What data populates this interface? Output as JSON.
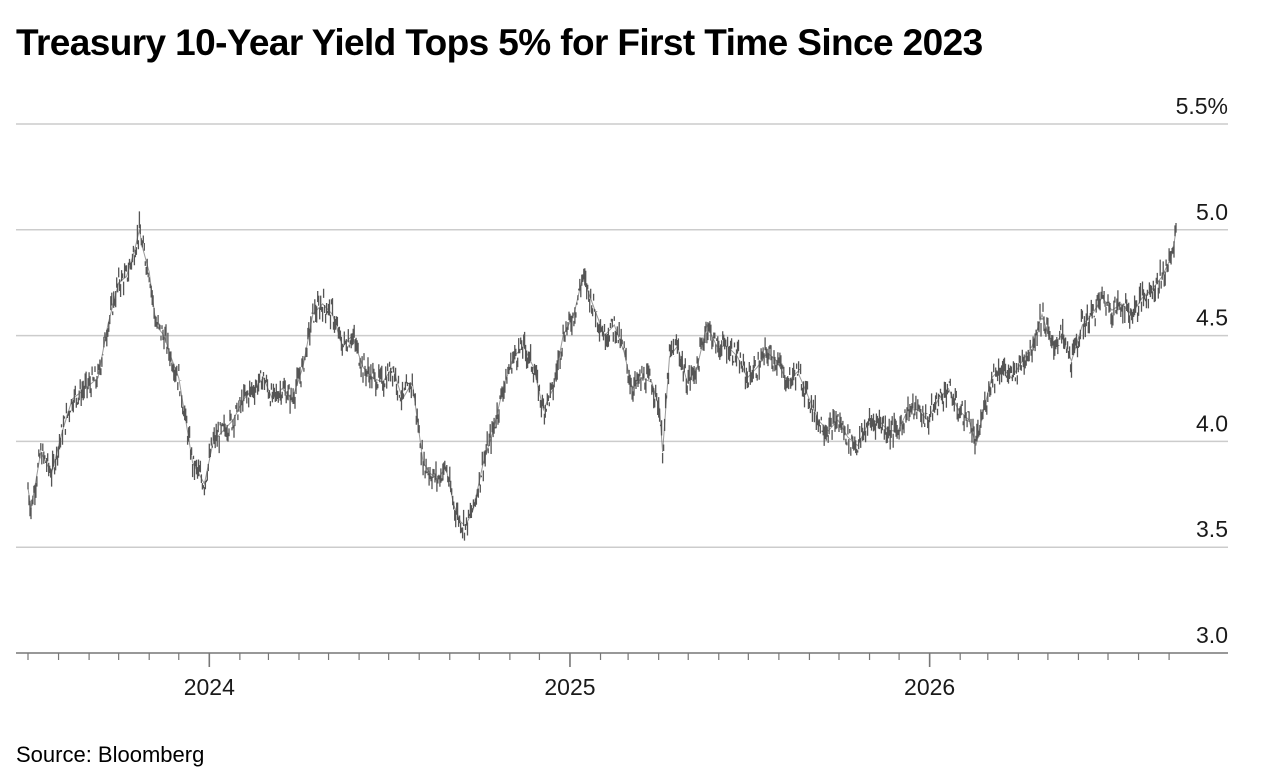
{
  "header": {
    "title": "Treasury 10-Year Yield Tops 5% for First Time Since 2023"
  },
  "footer": {
    "source": "Source: Bloomberg"
  },
  "chart_data": {
    "type": "line",
    "title": "Treasury 10-Year Yield Tops 5% for First Time Since 2023",
    "xlabel": "",
    "ylabel": "",
    "ylim": [
      3.0,
      5.5
    ],
    "xlim": [
      "2023-07-01",
      "2026-09-08"
    ],
    "y_ticks": [
      {
        "value": 5.5,
        "label": "5.5%"
      },
      {
        "value": 5.0,
        "label": "5.0"
      },
      {
        "value": 4.5,
        "label": "4.5"
      },
      {
        "value": 4.0,
        "label": "4.0"
      },
      {
        "value": 3.5,
        "label": "3.5"
      },
      {
        "value": 3.0,
        "label": "3.0"
      }
    ],
    "x_ticks": [
      {
        "date": "2024-01-01",
        "label": "2024"
      },
      {
        "date": "2025-01-01",
        "label": "2025"
      },
      {
        "date": "2026-01-01",
        "label": "2026"
      }
    ],
    "grid": true,
    "line_color": "#555555",
    "grid_color": "#cccccc",
    "series": [
      {
        "x": [
          "2023-07-01",
          "2023-07-04",
          "2023-07-14",
          "2023-07-25",
          "2023-08-05",
          "2023-08-15",
          "2023-08-28",
          "2023-09-10",
          "2023-09-20",
          "2023-10-01",
          "2023-10-09",
          "2023-10-17",
          "2023-10-22",
          "2023-10-25",
          "2023-11-01",
          "2023-11-08",
          "2023-11-16",
          "2023-11-23",
          "2023-12-01",
          "2023-12-08",
          "2023-12-15",
          "2023-12-27",
          "2024-01-05",
          "2024-01-15",
          "2024-01-25",
          "2024-02-05",
          "2024-02-15",
          "2024-02-25",
          "2024-03-05",
          "2024-03-15",
          "2024-03-25",
          "2024-04-05",
          "2024-04-15",
          "2024-04-25",
          "2024-05-05",
          "2024-05-15",
          "2024-05-25",
          "2024-06-05",
          "2024-06-15",
          "2024-06-25",
          "2024-07-05",
          "2024-07-15",
          "2024-07-25",
          "2024-08-05",
          "2024-08-12",
          "2024-08-20",
          "2024-08-28",
          "2024-09-05",
          "2024-09-12",
          "2024-09-17",
          "2024-09-25",
          "2024-10-05",
          "2024-10-15",
          "2024-10-25",
          "2024-11-05",
          "2024-11-15",
          "2024-11-25",
          "2024-12-05",
          "2024-12-15",
          "2024-12-25",
          "2025-01-05",
          "2025-01-14",
          "2025-01-24",
          "2025-02-05",
          "2025-02-15",
          "2025-02-25",
          "2025-03-05",
          "2025-03-15",
          "2025-03-25",
          "2025-04-02",
          "2025-04-05",
          "2025-04-12",
          "2025-04-20",
          "2025-04-30",
          "2025-05-10",
          "2025-05-20",
          "2025-05-30",
          "2025-06-10",
          "2025-06-20",
          "2025-06-30",
          "2025-07-10",
          "2025-07-20",
          "2025-07-30",
          "2025-08-10",
          "2025-08-20",
          "2025-08-30",
          "2025-09-10",
          "2025-09-20",
          "2025-09-30",
          "2025-10-10",
          "2025-10-20",
          "2025-10-30",
          "2025-11-10",
          "2025-11-20",
          "2025-11-30",
          "2025-12-10",
          "2025-12-20",
          "2025-12-30",
          "2026-01-10",
          "2026-01-20",
          "2026-01-30",
          "2026-02-10",
          "2026-02-17",
          "2026-02-25",
          "2026-03-05",
          "2026-03-15",
          "2026-03-25",
          "2026-04-05",
          "2026-04-15",
          "2026-04-25",
          "2026-05-05",
          "2026-05-15",
          "2026-05-25",
          "2026-06-05",
          "2026-06-15",
          "2026-06-25",
          "2026-07-05",
          "2026-07-15",
          "2026-07-25",
          "2026-08-05",
          "2026-08-15",
          "2026-08-25",
          "2026-09-01",
          "2026-09-05",
          "2026-09-08"
        ],
        "y": [
          3.78,
          3.68,
          3.95,
          3.85,
          4.05,
          4.2,
          4.25,
          4.3,
          4.55,
          4.75,
          4.78,
          4.9,
          5.0,
          4.92,
          4.8,
          4.55,
          4.5,
          4.4,
          4.3,
          4.1,
          3.9,
          3.8,
          4.0,
          4.05,
          4.1,
          4.2,
          4.25,
          4.3,
          4.2,
          4.25,
          4.2,
          4.35,
          4.6,
          4.65,
          4.6,
          4.45,
          4.5,
          4.35,
          4.3,
          4.28,
          4.35,
          4.2,
          4.28,
          3.9,
          3.85,
          3.82,
          3.88,
          3.7,
          3.62,
          3.6,
          3.68,
          3.9,
          4.05,
          4.25,
          4.4,
          4.45,
          4.35,
          4.15,
          4.25,
          4.5,
          4.6,
          4.78,
          4.65,
          4.5,
          4.55,
          4.42,
          4.25,
          4.3,
          4.28,
          4.15,
          3.95,
          4.4,
          4.45,
          4.28,
          4.35,
          4.55,
          4.45,
          4.45,
          4.4,
          4.3,
          4.35,
          4.42,
          4.38,
          4.28,
          4.33,
          4.22,
          4.1,
          4.05,
          4.1,
          4.02,
          3.98,
          4.08,
          4.1,
          4.05,
          4.05,
          4.15,
          4.15,
          4.1,
          4.2,
          4.25,
          4.15,
          4.1,
          3.98,
          4.15,
          4.3,
          4.35,
          4.3,
          4.38,
          4.45,
          4.6,
          4.45,
          4.5,
          4.38,
          4.55,
          4.6,
          4.68,
          4.62,
          4.65,
          4.6,
          4.68,
          4.72,
          4.78,
          4.85,
          4.9,
          5.0
        ]
      }
    ]
  }
}
